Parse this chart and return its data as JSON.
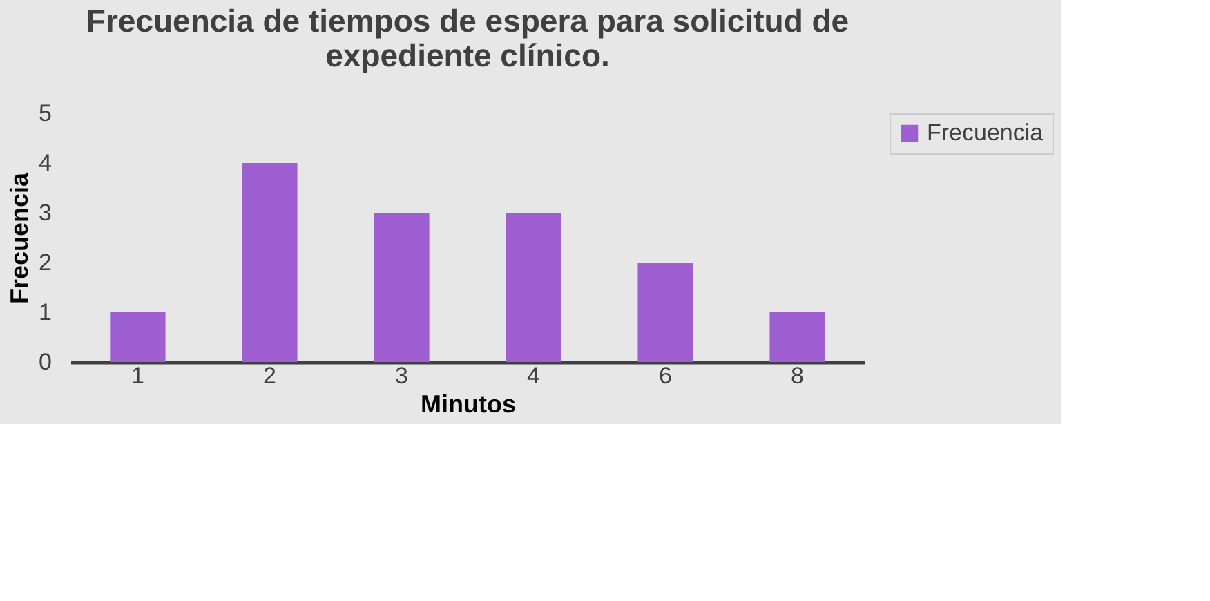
{
  "chart_data": {
    "type": "bar",
    "title": "Frecuencia de tiempos de espera para solicitud de expediente clínico.",
    "xlabel": "Minutos",
    "ylabel": "Frecuencia",
    "categories": [
      "1",
      "2",
      "3",
      "4",
      "6",
      "8"
    ],
    "series": [
      {
        "name": "Frecuencia",
        "color": "#9e5fd2",
        "values": [
          1,
          4,
          3,
          3,
          2,
          1
        ]
      }
    ],
    "ylim": [
      0,
      5
    ],
    "yticks": [
      0,
      1,
      2,
      3,
      4,
      5
    ],
    "grid": false,
    "legend": "right"
  }
}
